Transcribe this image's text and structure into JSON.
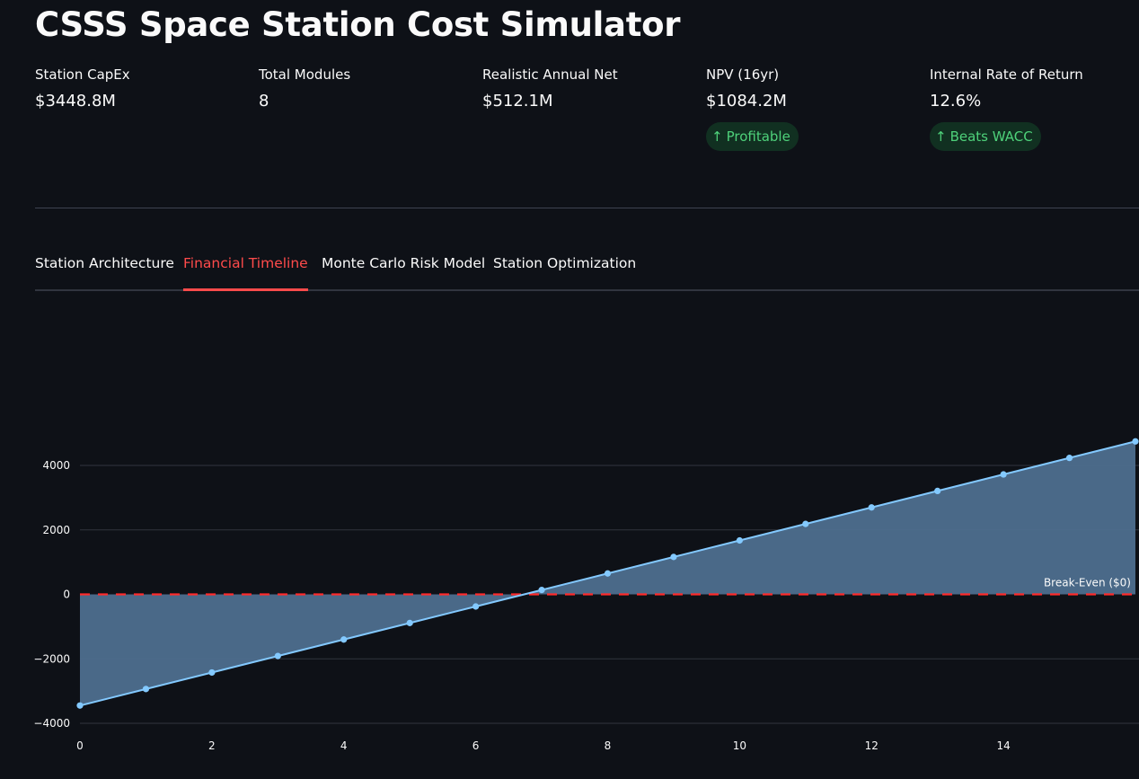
{
  "app": {
    "title": "CSSS Space Station Cost Simulator"
  },
  "metrics": [
    {
      "label": "Station CapEx",
      "value": "$3448.8M"
    },
    {
      "label": "Total Modules",
      "value": "8"
    },
    {
      "label": "Realistic Annual Net",
      "value": "$512.1M"
    },
    {
      "label": "NPV (16yr)",
      "value": "$1084.2M",
      "delta": "Profitable",
      "delta_direction": "up"
    },
    {
      "label": "Internal Rate of Return",
      "value": "12.6%",
      "delta": "Beats WACC",
      "delta_direction": "up"
    }
  ],
  "tabs": [
    {
      "label": "Station Architecture",
      "active": false
    },
    {
      "label": "Financial Timeline",
      "active": true
    },
    {
      "label": "Monte Carlo Risk Model",
      "active": false
    },
    {
      "label": "Station Optimization",
      "active": false
    }
  ],
  "colors": {
    "background": "#0e1117",
    "accent": "#ff4b4b",
    "line": "#83c9ff",
    "fill": "#4e6f8e",
    "break_even": "#ff2b2b",
    "delta_green": "#4ed17a"
  },
  "chart_data": {
    "type": "area",
    "title": "",
    "xlabel": "",
    "ylabel": "",
    "x": [
      0,
      1,
      2,
      3,
      4,
      5,
      6,
      7,
      8,
      9,
      10,
      11,
      12,
      13,
      14,
      15,
      16
    ],
    "series": [
      {
        "values": [
          -3448.8,
          -2936.7,
          -2424.6,
          -1912.5,
          -1400.4,
          -888.3,
          -376.2,
          135.9,
          648.0,
          1160.1,
          1672.2,
          2184.3,
          2696.4,
          3208.5,
          3720.6,
          4232.7,
          4744.8
        ]
      }
    ],
    "xlim": [
      0,
      16
    ],
    "ylim": [
      -4200,
      5200
    ],
    "x_ticks": [
      0,
      2,
      4,
      6,
      8,
      10,
      12,
      14
    ],
    "y_ticks": [
      -4000,
      -2000,
      0,
      2000,
      4000
    ],
    "y_tick_labels": [
      "−4000",
      "−2000",
      "0",
      "2000",
      "4000"
    ],
    "grid": true,
    "reference_line": {
      "y": 0,
      "label": "Break-Even ($0)",
      "style": "dashed"
    }
  }
}
